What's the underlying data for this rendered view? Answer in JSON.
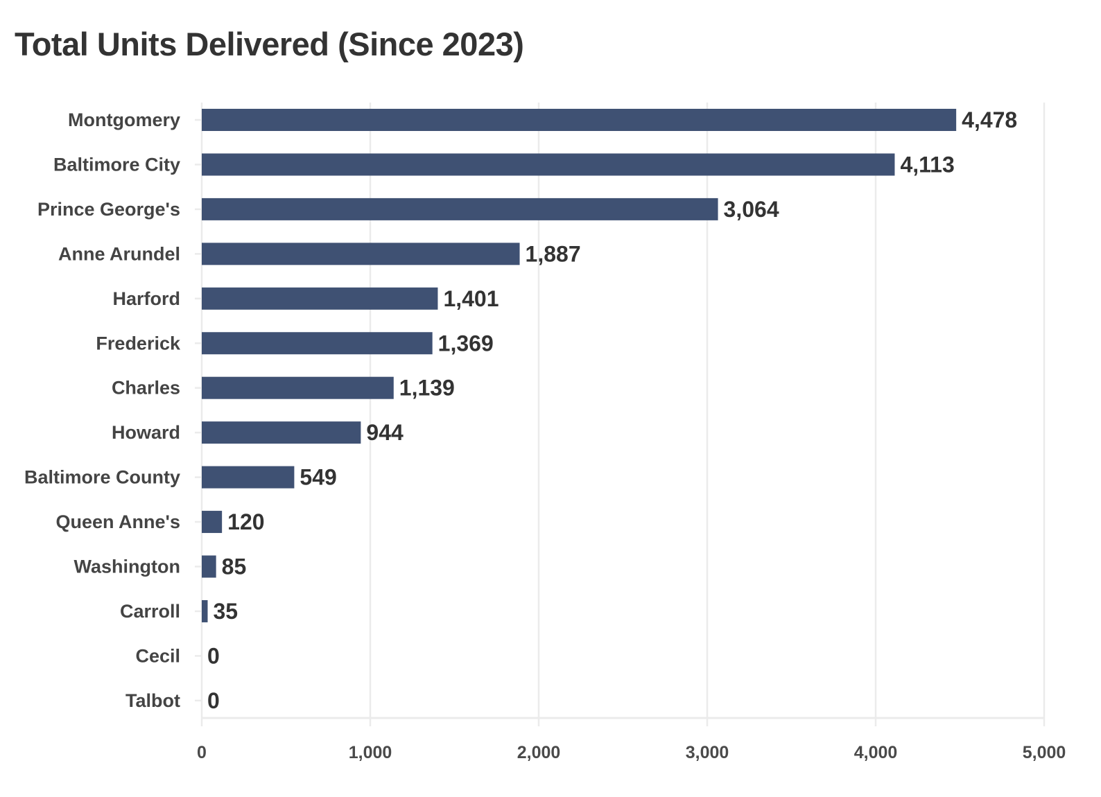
{
  "chart_data": {
    "type": "bar",
    "orientation": "horizontal",
    "title": "Total Units Delivered (Since 2023)",
    "xlabel": "",
    "ylabel": "",
    "categories": [
      "Montgomery",
      "Baltimore City",
      "Prince George's",
      "Anne Arundel",
      "Harford",
      "Frederick",
      "Charles",
      "Howard",
      "Baltimore County",
      "Queen Anne's",
      "Washington",
      "Carroll",
      "Cecil",
      "Talbot"
    ],
    "values": [
      4478,
      4113,
      3064,
      1887,
      1401,
      1369,
      1139,
      944,
      549,
      120,
      85,
      35,
      0,
      0
    ],
    "value_labels": [
      "4,478",
      "4,113",
      "3,064",
      "1,887",
      "1,401",
      "1,369",
      "1,139",
      "944",
      "549",
      "120",
      "85",
      "35",
      "0",
      "0"
    ],
    "xlim": [
      0,
      5000
    ],
    "x_ticks": [
      0,
      1000,
      2000,
      3000,
      4000,
      5000
    ],
    "x_tick_labels": [
      "0",
      "1,000",
      "2,000",
      "3,000",
      "4,000",
      "5,000"
    ],
    "grid": "vertical",
    "legend": "none",
    "bar_color": "#3f5173",
    "text_color": "#333333",
    "grid_color": "#ebebeb"
  }
}
